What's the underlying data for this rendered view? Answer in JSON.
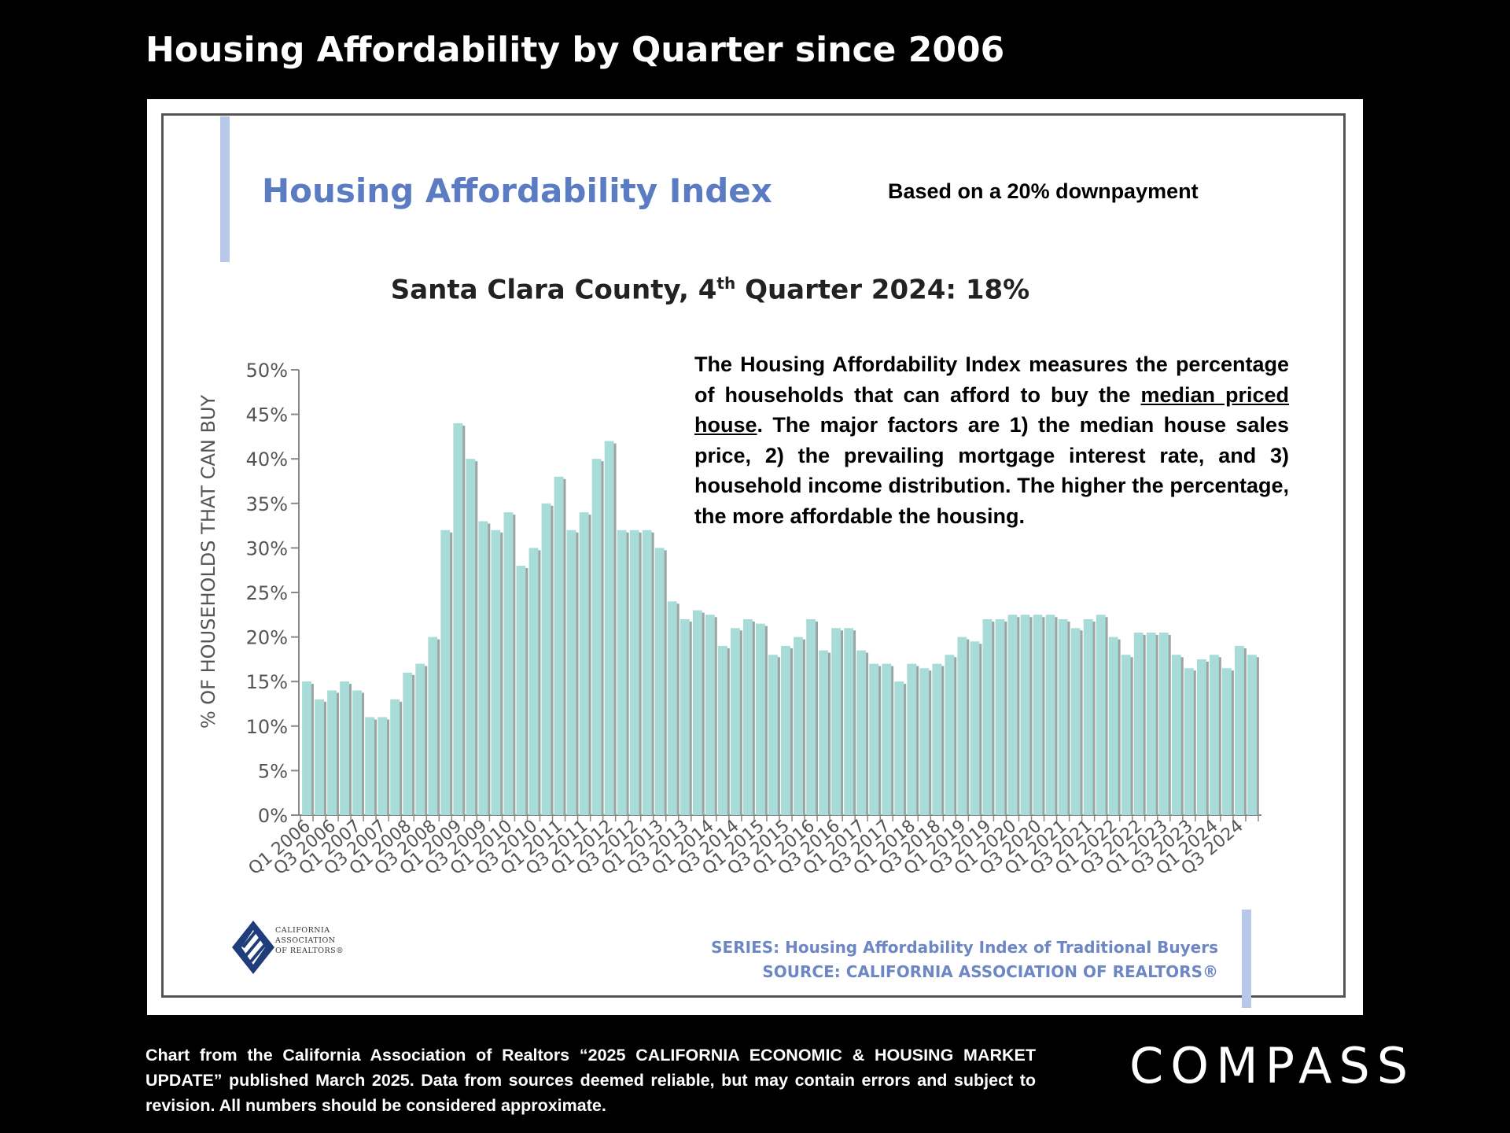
{
  "slide": {
    "title": "Housing Affordability by Quarter since 2006",
    "footer_note": "Chart from the California Association of Realtors “2025 CALIFORNIA ECONOMIC & HOUSING MARKET UPDATE” published March 2025. Data from sources deemed reliable, but may contain errors and subject to revision. All numbers should be considered approximate.",
    "brand": "COMPASS"
  },
  "panel": {
    "index_title": "Housing Affordability Index",
    "downpayment_note": "Based on a 20% downpayment",
    "subtitle_prefix": "Santa Clara County, 4",
    "subtitle_sup": "th",
    "subtitle_suffix": " Quarter 2024: 18%",
    "description_part1": "The Housing Affordability Index measures the percentage of households that can afford to buy the ",
    "description_underlined": "median priced house",
    "description_part2": ". The major factors are 1) the median house sales price, 2) the prevailing mortgage interest rate, and 3) household income distribution. The higher the percentage, the more affordable the housing.",
    "series_line": "SERIES: Housing Affordability Index of Traditional Buyers",
    "source_line": "SOURCE:  CALIFORNIA ASSOCIATION OF REALTORS®",
    "logo_lines": [
      "CALIFORNIA",
      "ASSOCIATION",
      "OF REALTORS®"
    ]
  },
  "colors": {
    "bar_fill": "#a8dcd8",
    "bar_shadow": "#9aa5a4",
    "title_blue": "#5b7cc2",
    "accent_bar": "#b7c8e8"
  },
  "chart_data": {
    "type": "bar",
    "ylabel": "% OF HOUSEHOLDS THAT CAN BUY",
    "xlabel": "",
    "ylim": [
      0,
      50
    ],
    "yticks": [
      "0%",
      "5%",
      "10%",
      "15%",
      "20%",
      "25%",
      "30%",
      "35%",
      "40%",
      "45%",
      "50%"
    ],
    "grid": false,
    "categories": [
      "Q1 2006",
      "Q2 2006",
      "Q3 2006",
      "Q4 2006",
      "Q1 2007",
      "Q2 2007",
      "Q3 2007",
      "Q4 2007",
      "Q1 2008",
      "Q2 2008",
      "Q3 2008",
      "Q4 2008",
      "Q1 2009",
      "Q2 2009",
      "Q3 2009",
      "Q4 2009",
      "Q1 2010",
      "Q2 2010",
      "Q3 2010",
      "Q4 2010",
      "Q1 2011",
      "Q2 2011",
      "Q3 2011",
      "Q4 2011",
      "Q1 2012",
      "Q2 2012",
      "Q3 2012",
      "Q4 2012",
      "Q1 2013",
      "Q2 2013",
      "Q3 2013",
      "Q4 2013",
      "Q1 2014",
      "Q2 2014",
      "Q3 2014",
      "Q4 2014",
      "Q1 2015",
      "Q2 2015",
      "Q3 2015",
      "Q4 2015",
      "Q1 2016",
      "Q2 2016",
      "Q3 2016",
      "Q4 2016",
      "Q1 2017",
      "Q2 2017",
      "Q3 2017",
      "Q4 2017",
      "Q1 2018",
      "Q2 2018",
      "Q3 2018",
      "Q4 2018",
      "Q1 2019",
      "Q2 2019",
      "Q3 2019",
      "Q4 2019",
      "Q1 2020",
      "Q2 2020",
      "Q3 2020",
      "Q4 2020",
      "Q1 2021",
      "Q2 2021",
      "Q3 2021",
      "Q4 2021",
      "Q1 2022",
      "Q2 2022",
      "Q3 2022",
      "Q4 2022",
      "Q1 2023",
      "Q2 2023",
      "Q3 2023",
      "Q4 2023",
      "Q1 2024",
      "Q2 2024",
      "Q3 2024",
      "Q4 2024"
    ],
    "tick_labels": [
      "Q1 2006",
      "Q3 2006",
      "Q1 2007",
      "Q3 2007",
      "Q1 2008",
      "Q3 2008",
      "Q1 2009",
      "Q3 2009",
      "Q1 2010",
      "Q3 2010",
      "Q1 2011",
      "Q3 2011",
      "Q1 2012",
      "Q3 2012",
      "Q1 2013",
      "Q3 2013",
      "Q1 2014",
      "Q3 2014",
      "Q1 2015",
      "Q3 2015",
      "Q1 2016",
      "Q3 2016",
      "Q1 2017",
      "Q3 2017",
      "Q1 2018",
      "Q3 2018",
      "Q1 2019",
      "Q3 2019",
      "Q1 2020",
      "Q3 2020",
      "Q1 2021",
      "Q3 2021",
      "Q1 2022",
      "Q3 2022",
      "Q1 2023",
      "Q3 2023",
      "Q1 2024",
      "Q3 2024"
    ],
    "values": [
      15,
      13,
      14,
      15,
      14,
      11,
      11,
      13,
      16,
      17,
      20,
      32,
      44,
      40,
      33,
      32,
      34,
      28,
      30,
      35,
      38,
      32,
      34,
      40,
      42,
      32,
      32,
      32,
      30,
      24,
      22,
      23,
      22.5,
      19,
      21,
      22,
      21.5,
      18,
      19,
      20,
      22,
      18.5,
      21,
      21,
      18.5,
      17,
      17,
      15,
      17,
      16.5,
      17,
      18,
      20,
      19.5,
      22,
      22,
      22.5,
      22.5,
      22.5,
      22.5,
      22,
      21,
      22,
      22.5,
      20,
      18,
      20.5,
      20.5,
      20.5,
      18,
      16.5,
      17.5,
      18,
      16.5,
      19,
      18
    ]
  }
}
